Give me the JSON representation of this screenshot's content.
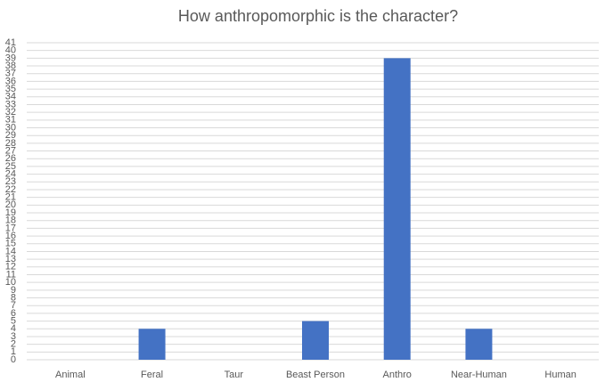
{
  "chart_data": {
    "type": "bar",
    "title": "How anthropomorphic is the character?",
    "categories": [
      "Animal",
      "Feral",
      "Taur",
      "Beast Person",
      "Anthro",
      "Near-Human",
      "Human"
    ],
    "values": [
      0,
      4,
      0,
      5,
      39,
      4,
      0
    ],
    "color": "#4472c4",
    "ylim": [
      0,
      41
    ],
    "yticks": [
      0,
      1,
      2,
      3,
      4,
      5,
      6,
      7,
      8,
      9,
      10,
      11,
      12,
      13,
      14,
      15,
      16,
      17,
      18,
      19,
      20,
      21,
      22,
      23,
      24,
      25,
      26,
      27,
      28,
      29,
      30,
      31,
      32,
      33,
      34,
      35,
      36,
      37,
      38,
      39,
      40,
      41
    ],
    "grid": true
  }
}
